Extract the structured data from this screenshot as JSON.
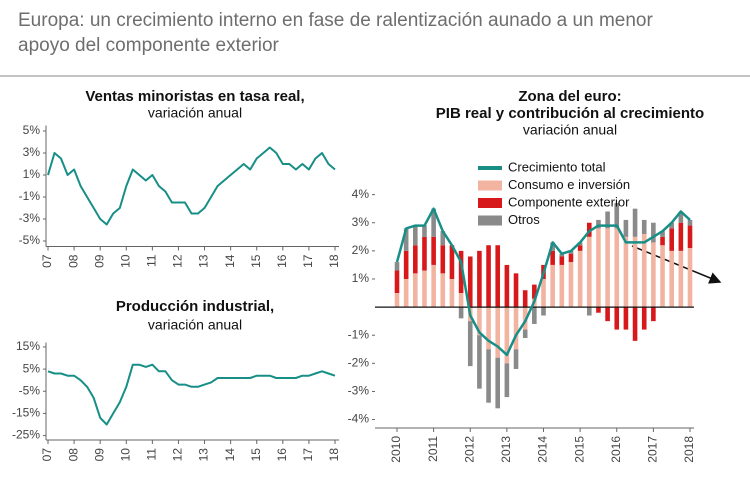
{
  "title": "Europa: un crecimiento interno en fase de ralentización aunado a un menor apoyo del componente exterior",
  "chart_data": [
    {
      "type": "line",
      "title": "Ventas minoristas en tasa real,",
      "subtitle": "variación anual",
      "color": "#178f87",
      "x": [
        2007,
        2007.25,
        2007.5,
        2007.75,
        2008,
        2008.25,
        2008.5,
        2008.75,
        2009,
        2009.25,
        2009.5,
        2009.75,
        2010,
        2010.25,
        2010.5,
        2010.75,
        2011,
        2011.25,
        2011.5,
        2011.75,
        2012,
        2012.25,
        2012.5,
        2012.75,
        2013,
        2013.25,
        2013.5,
        2013.75,
        2014,
        2014.25,
        2014.5,
        2014.75,
        2015,
        2015.25,
        2015.5,
        2015.75,
        2016,
        2016.25,
        2016.5,
        2016.75,
        2017,
        2017.25,
        2017.5,
        2017.75,
        2018
      ],
      "values": [
        1,
        3,
        2.5,
        1,
        1.5,
        0,
        -1,
        -2,
        -3,
        -3.5,
        -2.5,
        -2,
        0,
        1.5,
        1,
        0.5,
        1,
        0,
        -0.5,
        -1.5,
        -1.5,
        -1.5,
        -2.5,
        -2.5,
        -2,
        -1,
        0,
        0.5,
        1,
        1.5,
        2,
        1.5,
        2.5,
        3,
        3.5,
        3,
        2,
        2,
        1.5,
        2,
        1.5,
        2.5,
        3,
        2,
        1.5
      ],
      "xlim": [
        2007,
        2018
      ],
      "xticks": [
        {
          "value": 2007,
          "label": "07"
        },
        {
          "value": 2008,
          "label": "08"
        },
        {
          "value": 2009,
          "label": "09"
        },
        {
          "value": 2010,
          "label": "10"
        },
        {
          "value": 2011,
          "label": "11"
        },
        {
          "value": 2012,
          "label": "12"
        },
        {
          "value": 2013,
          "label": "13"
        },
        {
          "value": 2014,
          "label": "14"
        },
        {
          "value": 2015,
          "label": "15"
        },
        {
          "value": 2016,
          "label": "16"
        },
        {
          "value": 2017,
          "label": "17"
        },
        {
          "value": 2018,
          "label": "18"
        }
      ],
      "ylim": [
        -5.5,
        5.5
      ],
      "yticks": [
        {
          "value": 5,
          "label": "5%"
        },
        {
          "value": 3,
          "label": "3%"
        },
        {
          "value": 1,
          "label": "1%"
        },
        {
          "value": -1,
          "label": "-1%"
        },
        {
          "value": -3,
          "label": "-3%"
        },
        {
          "value": -5,
          "label": "-5%"
        }
      ]
    },
    {
      "type": "line",
      "title": "Producción industrial,",
      "subtitle": "variación anual",
      "color": "#178f87",
      "x": [
        2007,
        2007.25,
        2007.5,
        2007.75,
        2008,
        2008.25,
        2008.5,
        2008.75,
        2009,
        2009.25,
        2009.5,
        2009.75,
        2010,
        2010.25,
        2010.5,
        2010.75,
        2011,
        2011.25,
        2011.5,
        2011.75,
        2012,
        2012.25,
        2012.5,
        2012.75,
        2013,
        2013.25,
        2013.5,
        2013.75,
        2014,
        2014.25,
        2014.5,
        2014.75,
        2015,
        2015.25,
        2015.5,
        2015.75,
        2016,
        2016.25,
        2016.5,
        2016.75,
        2017,
        2017.25,
        2017.5,
        2017.75,
        2018
      ],
      "values": [
        4,
        3,
        3,
        2,
        2,
        0,
        -3,
        -8,
        -17,
        -20,
        -15,
        -10,
        -3,
        7,
        7,
        6,
        7,
        4,
        4,
        0,
        -2,
        -2,
        -3,
        -3,
        -2,
        -1,
        1,
        1,
        1,
        1,
        1,
        1,
        2,
        2,
        2,
        1,
        1,
        1,
        1,
        2,
        2,
        3,
        4,
        3,
        2
      ],
      "xlim": [
        2007,
        2018
      ],
      "xticks": [
        {
          "value": 2007,
          "label": "07"
        },
        {
          "value": 2008,
          "label": "08"
        },
        {
          "value": 2009,
          "label": "09"
        },
        {
          "value": 2010,
          "label": "10"
        },
        {
          "value": 2011,
          "label": "11"
        },
        {
          "value": 2012,
          "label": "12"
        },
        {
          "value": 2013,
          "label": "13"
        },
        {
          "value": 2014,
          "label": "14"
        },
        {
          "value": 2015,
          "label": "15"
        },
        {
          "value": 2016,
          "label": "16"
        },
        {
          "value": 2017,
          "label": "17"
        },
        {
          "value": 2018,
          "label": "18"
        }
      ],
      "ylim": [
        -27,
        17
      ],
      "yticks": [
        {
          "value": 15,
          "label": "15%"
        },
        {
          "value": 5,
          "label": "5%"
        },
        {
          "value": -5,
          "label": "-5%"
        },
        {
          "value": -15,
          "label": "-15%"
        },
        {
          "value": -25,
          "label": "-25%"
        }
      ]
    },
    {
      "type": "combo",
      "title": [
        "Zona del euro:",
        "PIB real y contribución al crecimiento"
      ],
      "subtitle": "variación anual",
      "x": [
        2010,
        2010.25,
        2010.5,
        2010.75,
        2011,
        2011.25,
        2011.5,
        2011.75,
        2012,
        2012.25,
        2012.5,
        2012.75,
        2013,
        2013.25,
        2013.5,
        2013.75,
        2014,
        2014.25,
        2014.5,
        2014.75,
        2015,
        2015.25,
        2015.5,
        2015.75,
        2016,
        2016.25,
        2016.5,
        2016.75,
        2017,
        2017.25,
        2017.5,
        2017.75,
        2018
      ],
      "series": [
        {
          "name": "Crecimiento total",
          "kind": "line",
          "color": "#178f87",
          "values": [
            1.6,
            2.8,
            2.9,
            2.9,
            3.5,
            2.7,
            2.2,
            1.6,
            -0.3,
            -0.9,
            -1.2,
            -1.4,
            -1.7,
            -1.0,
            -0.5,
            0.2,
            1.2,
            2.3,
            1.9,
            2.0,
            2.3,
            2.7,
            2.9,
            2.9,
            2.9,
            2.3,
            2.3,
            2.3,
            2.5,
            2.7,
            3.0,
            3.4,
            3.1
          ]
        },
        {
          "name": "Consumo e inversión",
          "kind": "bar",
          "color": "#f2b4a1",
          "values": [
            0.5,
            1.0,
            1.2,
            1.3,
            1.5,
            1.2,
            1.0,
            0.5,
            -0.5,
            -1.0,
            -1.5,
            -1.8,
            -2.0,
            -1.5,
            -0.8,
            0.3,
            1.0,
            1.5,
            1.5,
            1.6,
            2.0,
            2.5,
            2.8,
            2.8,
            2.8,
            2.5,
            2.5,
            2.6,
            2.3,
            2.2,
            2.0,
            2.0,
            2.1
          ]
        },
        {
          "name": "Componente exterior",
          "kind": "bar",
          "color": "#d7191c",
          "values": [
            0.8,
            1.0,
            1.0,
            1.2,
            1.0,
            1.0,
            1.2,
            1.5,
            1.8,
            2.0,
            2.2,
            2.2,
            1.5,
            1.2,
            0.6,
            0.5,
            0.5,
            0.5,
            0.3,
            0.3,
            0.2,
            0.5,
            -0.2,
            -0.5,
            -0.8,
            -0.8,
            -1.2,
            -0.8,
            -0.5,
            0.3,
            0.8,
            1.0,
            0.8
          ]
        },
        {
          "name": "Otros",
          "kind": "bar",
          "color": "#8a8a8a",
          "values": [
            0.3,
            0.8,
            0.7,
            0.4,
            1.0,
            0.5,
            0,
            -0.4,
            -1.6,
            -1.9,
            -1.9,
            -1.8,
            -1.2,
            -0.7,
            -0.3,
            -0.6,
            -0.3,
            0.3,
            0.1,
            0.1,
            0.1,
            -0.3,
            0.3,
            0.6,
            0.9,
            0.6,
            1.0,
            0.5,
            0.7,
            0.2,
            0.2,
            0.4,
            0.2
          ]
        }
      ],
      "xlim": [
        2010,
        2018
      ],
      "xticks": [
        2010,
        2011,
        2012,
        2013,
        2014,
        2015,
        2016,
        2017,
        2018
      ],
      "ylim": [
        -4.3,
        4.2
      ],
      "yticks": [
        {
          "value": 4,
          "label": "4%"
        },
        {
          "value": 3,
          "label": "3%"
        },
        {
          "value": 2,
          "label": "2%"
        },
        {
          "value": 1,
          "label": "1%"
        },
        {
          "value": -1,
          "label": "-1%"
        },
        {
          "value": -2,
          "label": "-2%"
        },
        {
          "value": -3,
          "label": "-3%"
        },
        {
          "value": -4,
          "label": "-4%"
        }
      ]
    }
  ]
}
